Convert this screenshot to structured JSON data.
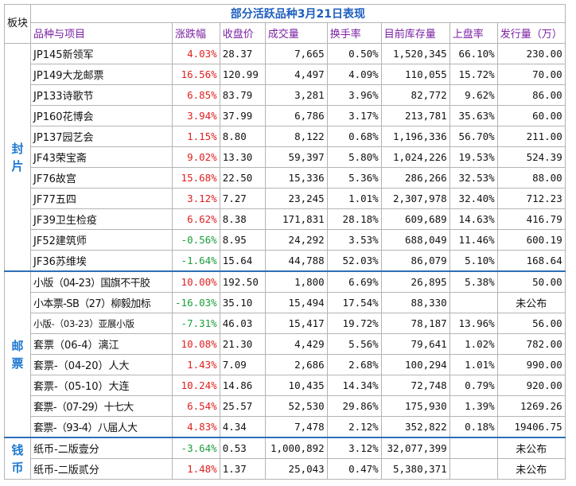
{
  "title": "部分活跃品种3月21日表现",
  "corner_label": "板块",
  "headers": [
    "品种与项目",
    "涨跌幅",
    "收盘价",
    "成交量",
    "换手率",
    "目前库存量",
    "上盘率",
    "发行量（万）"
  ],
  "colors": {
    "up": "#e02020",
    "down": "#1a9e3a",
    "header": "#7a1fa2",
    "title": "#1f5fbf",
    "category": "#1f78d1"
  },
  "groups": [
    {
      "category": "封片",
      "rows": [
        {
          "name": "JP145新领军",
          "change": "4.03%",
          "dir": "up",
          "close": "28.37",
          "volume": "7,665",
          "turnover": "0.50%",
          "stock": "1,520,345",
          "rate": "66.10%",
          "issue": "230.00"
        },
        {
          "name": "JP149大龙邮票",
          "change": "16.56%",
          "dir": "up",
          "close": "120.99",
          "volume": "4,497",
          "turnover": "4.09%",
          "stock": "110,055",
          "rate": "15.72%",
          "issue": "70.00"
        },
        {
          "name": "JP133诗歌节",
          "change": "6.85%",
          "dir": "up",
          "close": "83.79",
          "volume": "3,281",
          "turnover": "3.96%",
          "stock": "82,772",
          "rate": "9.62%",
          "issue": "86.00"
        },
        {
          "name": "JP160花博会",
          "change": "3.94%",
          "dir": "up",
          "close": "37.99",
          "volume": "6,786",
          "turnover": "3.17%",
          "stock": "213,781",
          "rate": "35.63%",
          "issue": "60.00"
        },
        {
          "name": "JP137园艺会",
          "change": "1.15%",
          "dir": "up",
          "close": "8.80",
          "volume": "8,122",
          "turnover": "0.68%",
          "stock": "1,196,336",
          "rate": "56.70%",
          "issue": "211.00"
        },
        {
          "name": "JF43荣宝斋",
          "change": "9.02%",
          "dir": "up",
          "close": "13.30",
          "volume": "59,397",
          "turnover": "5.80%",
          "stock": "1,024,226",
          "rate": "19.53%",
          "issue": "524.39"
        },
        {
          "name": "JF76故宫",
          "change": "15.68%",
          "dir": "up",
          "close": "22.50",
          "volume": "15,336",
          "turnover": "5.36%",
          "stock": "286,266",
          "rate": "32.53%",
          "issue": "88.00"
        },
        {
          "name": "JF77五四",
          "change": "3.12%",
          "dir": "up",
          "close": "7.27",
          "volume": "23,245",
          "turnover": "1.01%",
          "stock": "2,307,978",
          "rate": "32.40%",
          "issue": "712.23"
        },
        {
          "name": "JF39卫生检疫",
          "change": "6.62%",
          "dir": "up",
          "close": "8.38",
          "volume": "171,831",
          "turnover": "28.18%",
          "stock": "609,689",
          "rate": "14.63%",
          "issue": "416.79"
        },
        {
          "name": "JF52建筑师",
          "change": "-0.56%",
          "dir": "down",
          "close": "8.95",
          "volume": "24,292",
          "turnover": "3.53%",
          "stock": "688,049",
          "rate": "11.46%",
          "issue": "600.19"
        },
        {
          "name": "JF36苏维埃",
          "change": "-1.64%",
          "dir": "down",
          "close": "15.64",
          "volume": "44,788",
          "turnover": "52.03%",
          "stock": "86,079",
          "rate": "5.10%",
          "issue": "168.64"
        }
      ]
    },
    {
      "category": "邮票",
      "rows": [
        {
          "name": "小版（04-23）国旗不干胶",
          "change": "10.00%",
          "dir": "up",
          "close": "192.50",
          "volume": "1,800",
          "turnover": "6.69%",
          "stock": "26,895",
          "rate": "5.38%",
          "issue": "50.00"
        },
        {
          "name": "小本票-SB（27）柳毅加标",
          "change": "-16.03%",
          "dir": "down",
          "close": "35.10",
          "volume": "15,494",
          "turnover": "17.54%",
          "stock": "88,330",
          "rate": "",
          "issue": "未公布"
        },
        {
          "name": "小版-（03-23）亚展小版",
          "change": "-7.31%",
          "dir": "down",
          "close": "46.03",
          "volume": "15,417",
          "turnover": "19.72%",
          "stock": "78,187",
          "rate": "13.96%",
          "issue": "56.00"
        },
        {
          "name": "套票（06-4）漓江",
          "change": "10.08%",
          "dir": "up",
          "close": "21.30",
          "volume": "4,429",
          "turnover": "5.56%",
          "stock": "79,641",
          "rate": "1.02%",
          "issue": "782.00"
        },
        {
          "name": "套票-（04-20）人大",
          "change": "1.43%",
          "dir": "up",
          "close": "7.09",
          "volume": "2,686",
          "turnover": "2.68%",
          "stock": "100,294",
          "rate": "1.01%",
          "issue": "990.00"
        },
        {
          "name": "套票-（05-10）大连",
          "change": "10.24%",
          "dir": "up",
          "close": "14.86",
          "volume": "10,435",
          "turnover": "14.34%",
          "stock": "72,748",
          "rate": "0.79%",
          "issue": "920.00"
        },
        {
          "name": "套票-（07-29）十七大",
          "change": "6.54%",
          "dir": "up",
          "close": "25.57",
          "volume": "52,530",
          "turnover": "29.86%",
          "stock": "175,930",
          "rate": "1.39%",
          "issue": "1269.26"
        },
        {
          "name": "套票-（93-4）八届人大",
          "change": "4.83%",
          "dir": "up",
          "close": "4.34",
          "volume": "7,478",
          "turnover": "2.12%",
          "stock": "352,822",
          "rate": "0.18%",
          "issue": "19406.75"
        }
      ]
    },
    {
      "category": "钱币",
      "rows": [
        {
          "name": "纸币-二版壹分",
          "change": "-3.64%",
          "dir": "down",
          "close": "0.53",
          "volume": "1,000,892",
          "turnover": "3.12%",
          "stock": "32,077,399",
          "rate": "",
          "issue": "未公布"
        },
        {
          "name": "纸币-二版贰分",
          "change": "1.48%",
          "dir": "up",
          "close": "1.37",
          "volume": "25,043",
          "turnover": "0.47%",
          "stock": "5,380,371",
          "rate": "",
          "issue": "未公布"
        }
      ]
    }
  ]
}
